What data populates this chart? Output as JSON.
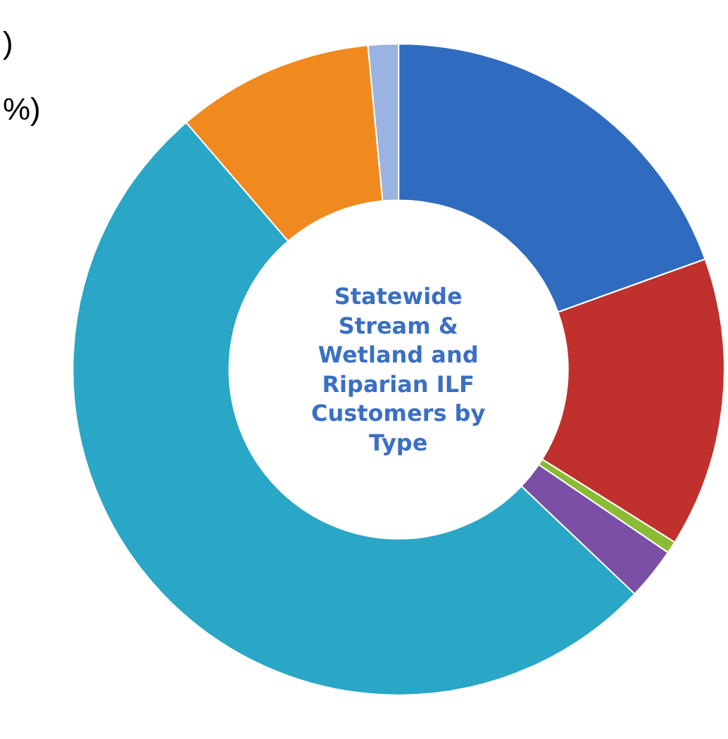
{
  "chart_data": {
    "type": "donut",
    "title": "Statewide Stream & Wetland and Riparian ILF Customers by Type",
    "categories": [
      null,
      null,
      null,
      null,
      null,
      null,
      null
    ],
    "values": [
      19.5,
      14.4,
      0.6,
      2.6,
      51.6,
      9.8,
      1.5
    ],
    "colors": [
      "#2f6cbf",
      "#c0302c",
      "#8bbb35",
      "#7b4fa5",
      "#2aa6c6",
      "#f08a1e",
      "#9ab3e0"
    ],
    "annotations": [
      ")",
      "%)"
    ],
    "legend": false
  }
}
